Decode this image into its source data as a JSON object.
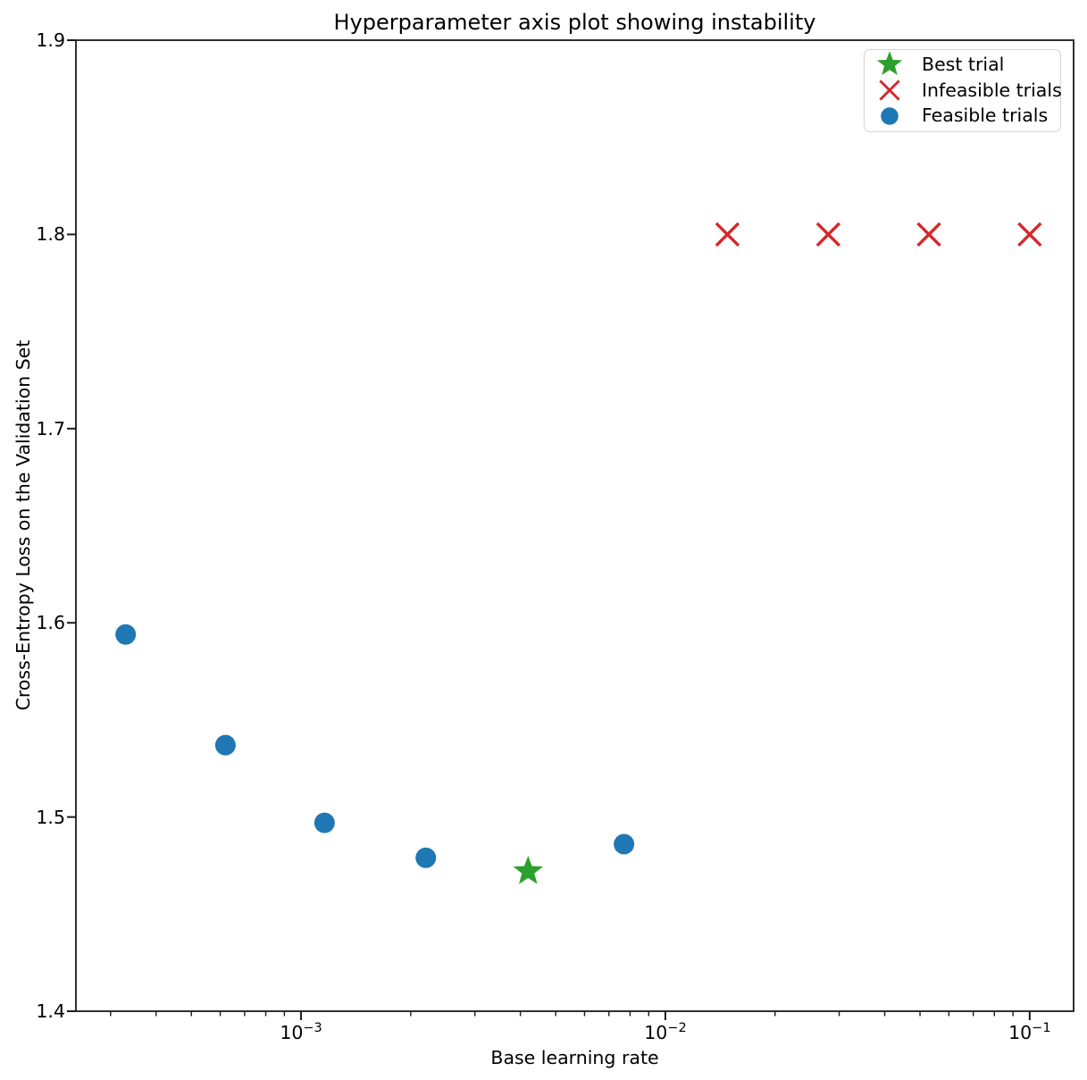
{
  "figure": {
    "title": "Hyperparameter axis plot showing instability",
    "xlabel": "Base learning rate",
    "ylabel": "Cross-Entropy Loss on the Validation Set",
    "background": "#ffffff"
  },
  "legend": {
    "items": [
      {
        "id": "best",
        "label": "Best trial",
        "marker": "star",
        "color": "#2ca02c"
      },
      {
        "id": "infeasible",
        "label": "Infeasible trials",
        "marker": "x",
        "color": "#d62728"
      },
      {
        "id": "feasible",
        "label": "Feasible trials",
        "marker": "circle",
        "color": "#1f77b4"
      }
    ]
  },
  "chart_data": {
    "type": "scatter",
    "title": "Hyperparameter axis plot showing instability",
    "xlabel": "Base learning rate",
    "ylabel": "Cross-Entropy Loss on the Validation Set",
    "x_scale": "log",
    "xlim": [
      0.000241,
      0.132
    ],
    "ylim": [
      1.4,
      1.9
    ],
    "x_ticks": [
      {
        "value": 0.001,
        "exp": -3
      },
      {
        "value": 0.01,
        "exp": -2
      },
      {
        "value": 0.1,
        "exp": -1
      }
    ],
    "y_ticks": [
      1.4,
      1.5,
      1.6,
      1.7,
      1.8,
      1.9
    ],
    "grid": false,
    "legend_position": "upper right",
    "series": [
      {
        "name": "Feasible trials",
        "marker": "circle",
        "color": "#1f77b4",
        "points": [
          {
            "x": 0.00033,
            "y": 1.594
          },
          {
            "x": 0.00062,
            "y": 1.537
          },
          {
            "x": 0.00116,
            "y": 1.497
          },
          {
            "x": 0.0022,
            "y": 1.479
          },
          {
            "x": 0.0077,
            "y": 1.486
          }
        ]
      },
      {
        "name": "Best trial",
        "marker": "star",
        "color": "#2ca02c",
        "points": [
          {
            "x": 0.0042,
            "y": 1.472
          }
        ]
      },
      {
        "name": "Infeasible trials",
        "marker": "x",
        "color": "#d62728",
        "points": [
          {
            "x": 0.0148,
            "y": 1.8
          },
          {
            "x": 0.028,
            "y": 1.8
          },
          {
            "x": 0.0529,
            "y": 1.8
          },
          {
            "x": 0.1,
            "y": 1.8
          }
        ]
      }
    ]
  },
  "style": {
    "axis_color": "#1a1a1a",
    "feasible_color": "#1f77b4",
    "infeasible_color": "#d62728",
    "best_color": "#2ca02c"
  }
}
